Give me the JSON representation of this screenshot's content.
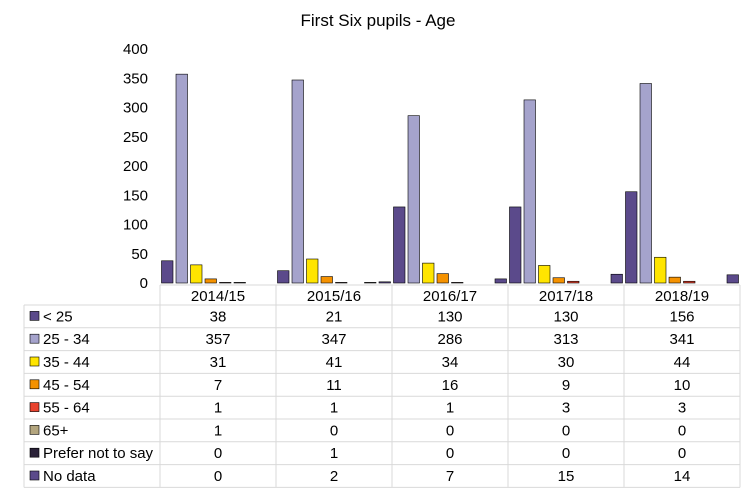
{
  "chart_data": {
    "type": "bar",
    "title": "First Six pupils - Age",
    "categories": [
      "2014/15",
      "2015/16",
      "2016/17",
      "2017/18",
      "2018/19"
    ],
    "ylim": [
      0,
      400
    ],
    "yticks": [
      0,
      50,
      100,
      150,
      200,
      250,
      300,
      350,
      400
    ],
    "legend": "data-table-below",
    "grid": false,
    "series": [
      {
        "name": "< 25",
        "values": [
          38,
          21,
          130,
          130,
          156
        ],
        "color": "#5b4a8b"
      },
      {
        "name": "25 - 34",
        "values": [
          357,
          347,
          286,
          313,
          341
        ],
        "color": "#a5a3cc"
      },
      {
        "name": "35 - 44",
        "values": [
          31,
          41,
          34,
          30,
          44
        ],
        "color": "#ffe500"
      },
      {
        "name": "45 - 54",
        "values": [
          7,
          11,
          16,
          9,
          10
        ],
        "color": "#f59200"
      },
      {
        "name": "55 - 64",
        "values": [
          1,
          1,
          1,
          3,
          3
        ],
        "color": "#e8432e"
      },
      {
        "name": "65+",
        "values": [
          1,
          0,
          0,
          0,
          0
        ],
        "color": "#b3a57e"
      },
      {
        "name": "Prefer not to say",
        "values": [
          0,
          1,
          0,
          0,
          0
        ],
        "color": "#2a2238"
      },
      {
        "name": "No data",
        "values": [
          0,
          2,
          7,
          15,
          14
        ],
        "color": "#5b4a8b"
      }
    ]
  }
}
